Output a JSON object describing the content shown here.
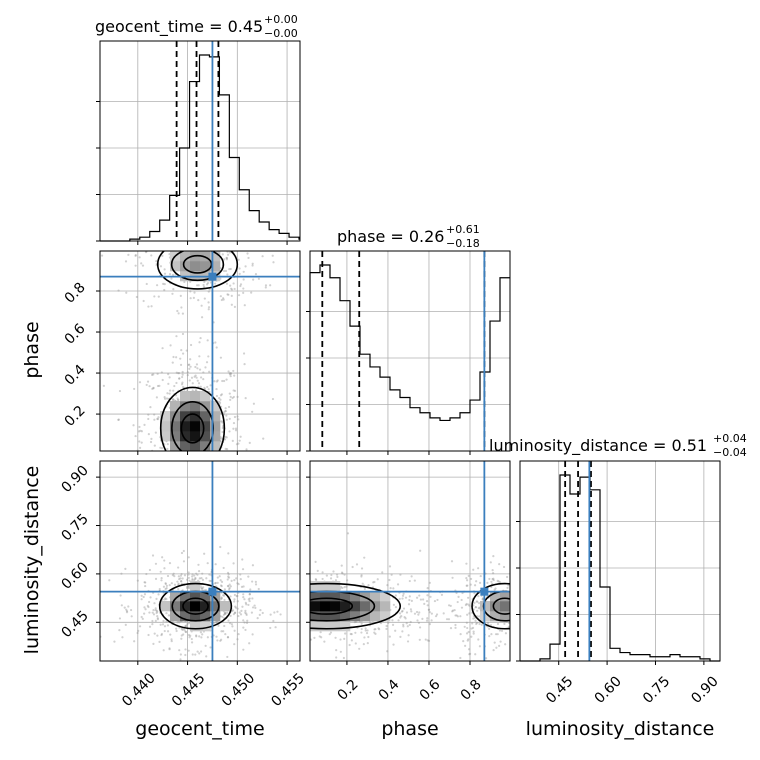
{
  "chart_data": {
    "type": "corner",
    "parameters": [
      "geocent_time",
      "phase",
      "luminosity_distance"
    ],
    "truths": {
      "geocent_time": 0.4475,
      "phase": 0.87,
      "luminosity_distance": 0.545
    },
    "truth_color": "#3b7fbe",
    "hist_color": "#000000",
    "grid": true,
    "marginals": [
      {
        "param": "geocent_time",
        "title_main": "geocent_time = 0.45",
        "title_sup": "+0.00",
        "title_sub": "−0.00",
        "quantiles": [
          0.4439,
          0.4459,
          0.4481
        ],
        "range": [
          0.4362,
          0.4563
        ],
        "x_ticks": [
          0.44,
          0.445,
          0.45,
          0.455
        ],
        "x_tick_labels": [
          "0.440",
          "0.445",
          "0.450",
          "0.455"
        ],
        "hist": {
          "edges_start": 0.4362,
          "bin_width": 0.001,
          "counts": [
            0,
            0,
            0,
            1,
            2,
            5,
            11,
            24,
            49,
            84,
            98,
            97,
            77,
            44,
            27,
            16,
            10,
            6,
            4,
            2,
            1
          ]
        }
      },
      {
        "param": "phase",
        "title_main": "phase = 0.26",
        "title_sup": "+0.61",
        "title_sub": "−0.18",
        "quantiles": [
          0.08,
          0.26,
          0.87
        ],
        "range": [
          0.02,
          0.995
        ],
        "x_ticks": [
          0.2,
          0.4,
          0.6,
          0.8
        ],
        "x_tick_labels": [
          "0.2",
          "0.4",
          "0.6",
          "0.8"
        ],
        "hist": {
          "edges_start": 0.02,
          "bin_width": 0.04875,
          "counts": [
            70,
            73,
            68,
            59,
            49,
            38,
            33,
            29,
            24,
            21,
            17,
            15,
            13,
            12,
            13,
            15,
            20,
            31,
            51,
            68
          ]
        }
      },
      {
        "param": "luminosity_distance",
        "title_main": "luminosity_distance = 0.51",
        "title_sup": "+0.04",
        "title_sub": "−0.04",
        "quantiles": [
          0.47,
          0.51,
          0.55
        ],
        "range": [
          0.33,
          0.95
        ],
        "x_ticks": [
          0.45,
          0.6,
          0.75,
          0.9
        ],
        "x_tick_labels": [
          "0.45",
          "0.60",
          "0.75",
          "0.90"
        ],
        "hist": {
          "edges_start": 0.33,
          "bin_width": 0.031,
          "counts": [
            0,
            0,
            1,
            8,
            88,
            79,
            87,
            81,
            35,
            6,
            4,
            3,
            3,
            2,
            2,
            3,
            2,
            2,
            1,
            0
          ]
        }
      }
    ],
    "y_axes": [
      {
        "param": "phase",
        "range": [
          0.02,
          0.995
        ],
        "ticks": [
          0.2,
          0.4,
          0.6,
          0.8
        ],
        "tick_labels": [
          "0.2",
          "0.4",
          "0.6",
          "0.8"
        ]
      },
      {
        "param": "luminosity_distance",
        "range": [
          0.33,
          0.95
        ],
        "ticks": [
          0.45,
          0.6,
          0.75,
          0.9
        ],
        "tick_labels": [
          "0.45",
          "0.60",
          "0.75",
          "0.90"
        ]
      }
    ],
    "axis_labels": {
      "x": [
        "geocent_time",
        "phase",
        "luminosity_distance"
      ],
      "y": [
        "phase",
        "luminosity_distance"
      ]
    },
    "density_2d": {
      "phase_vs_geocent_time": {
        "blobs": [
          {
            "cx": 0.4455,
            "cy": 0.13,
            "sx": 0.0016,
            "sy": 0.1,
            "w": 1.0
          },
          {
            "cx": 0.446,
            "cy": 0.93,
            "sx": 0.002,
            "sy": 0.06,
            "w": 0.45
          }
        ]
      },
      "luminosity_distance_vs_geocent_time": {
        "blobs": [
          {
            "cx": 0.4458,
            "cy": 0.5,
            "sx": 0.0018,
            "sy": 0.035,
            "w": 1.0
          }
        ]
      },
      "luminosity_distance_vs_phase": {
        "blobs": [
          {
            "cx": 0.1,
            "cy": 0.5,
            "sx": 0.18,
            "sy": 0.035,
            "w": 1.0
          },
          {
            "cx": 0.97,
            "cy": 0.5,
            "sx": 0.08,
            "sy": 0.035,
            "w": 0.55
          }
        ]
      }
    }
  }
}
